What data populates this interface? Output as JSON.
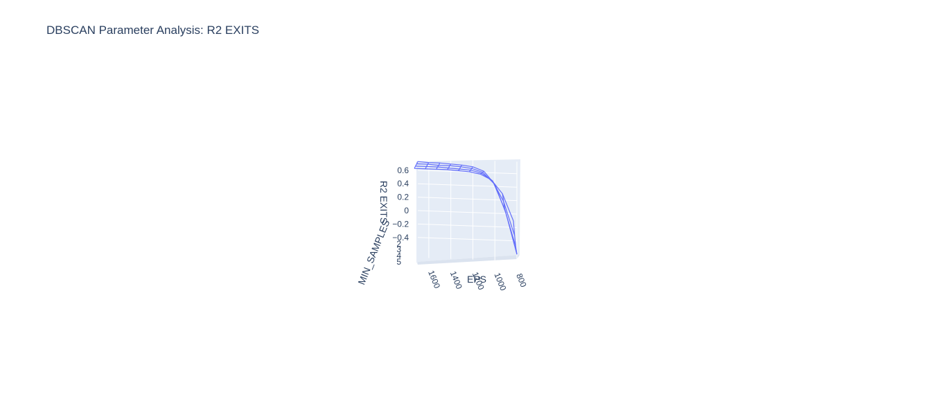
{
  "page": {
    "title": "DBSCAN Parameter Analysis: R2 EXITS"
  },
  "chart_data": {
    "type": "surface-wireframe-3d",
    "title": "DBSCAN Parameter Analysis: R2 EXITS",
    "xlabel": "EPS",
    "ylabel": "MIN_SAMPLES",
    "zlabel": "R2 EXITS",
    "x_ticks": [
      "1600",
      "1400",
      "1200",
      "1000",
      "800"
    ],
    "y_ticks": [
      "2",
      "3",
      "4",
      "5"
    ],
    "z_ticks": [
      "0.6",
      "0.4",
      "0.2",
      "0",
      "−0.2",
      "−0.4"
    ],
    "eps": [
      800,
      900,
      1000,
      1100,
      1200,
      1300,
      1400,
      1500,
      1600,
      1700
    ],
    "min_samples": [
      2,
      3,
      4,
      5
    ],
    "r2": [
      [
        -0.6,
        0.01,
        0.43,
        0.62,
        0.68,
        0.7,
        0.71,
        0.72,
        0.72,
        0.73
      ],
      [
        -0.45,
        0.1,
        0.48,
        0.64,
        0.69,
        0.71,
        0.72,
        0.72,
        0.73,
        0.73
      ],
      [
        -0.25,
        0.25,
        0.55,
        0.66,
        0.7,
        0.71,
        0.72,
        0.73,
        0.73,
        0.73
      ],
      [
        0.0,
        0.4,
        0.6,
        0.68,
        0.71,
        0.72,
        0.73,
        0.73,
        0.73,
        0.73
      ]
    ],
    "grid": true,
    "line_color": "#636efa",
    "background_color": "#e5ecf6"
  }
}
